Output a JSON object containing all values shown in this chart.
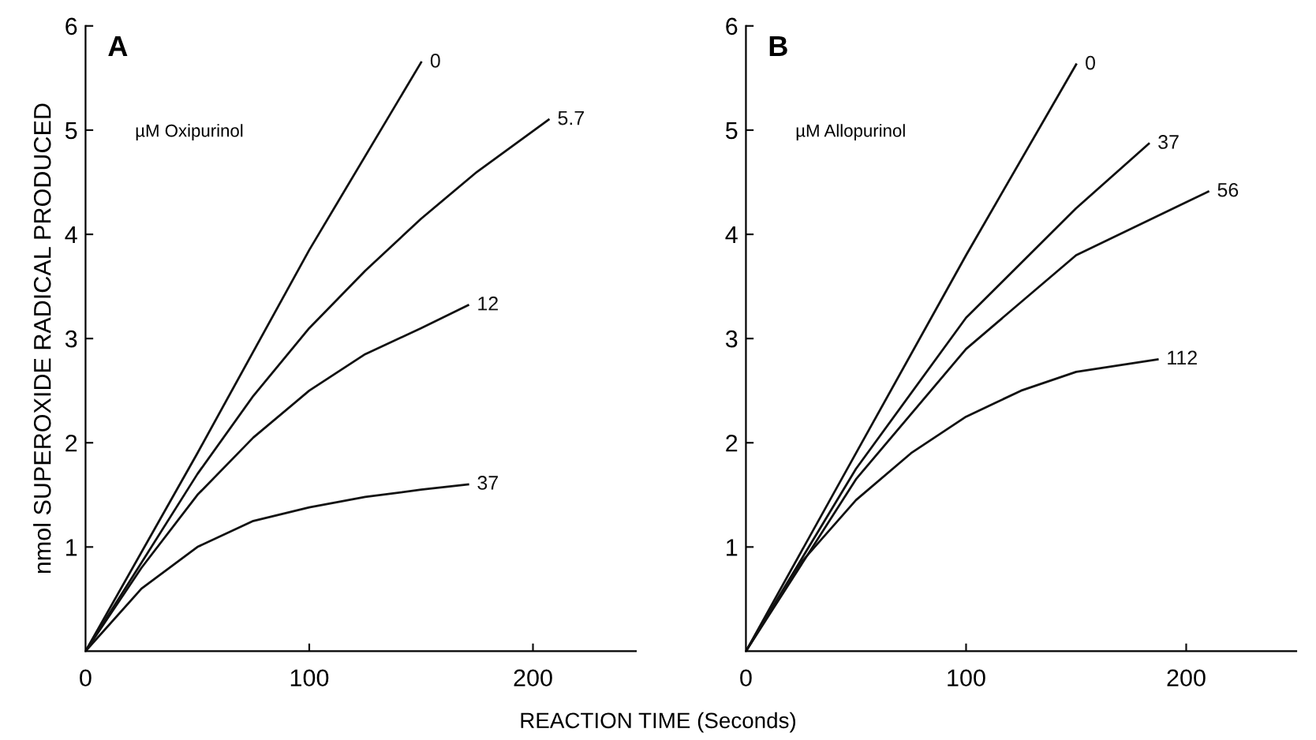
{
  "chart_data": [
    {
      "type": "line",
      "title": "A",
      "xlabel": "REACTION TIME (Seconds)",
      "ylabel": "nmol SUPEROXIDE RADICAL PRODUCED",
      "annotations": [
        "µM Oxipurinol"
      ],
      "xlim": [
        0,
        246
      ],
      "ylim": [
        0,
        6
      ],
      "xticks": [
        0,
        100,
        200
      ],
      "yticks": [
        1,
        2,
        3,
        4,
        5,
        6
      ],
      "color": "#111111",
      "grid": false,
      "legend": false,
      "marker": "none",
      "series": [
        {
          "name": "0",
          "color": "#111111",
          "x": [
            0,
            50,
            100,
            150
          ],
          "values": [
            0,
            1.9,
            3.85,
            5.65
          ]
        },
        {
          "name": "5.7",
          "color": "#111111",
          "x": [
            0,
            25,
            50,
            75,
            100,
            125,
            150,
            175,
            207
          ],
          "values": [
            0,
            0.85,
            1.7,
            2.45,
            3.1,
            3.65,
            4.15,
            4.6,
            5.1
          ]
        },
        {
          "name": "12",
          "color": "#111111",
          "x": [
            0,
            25,
            50,
            75,
            100,
            125,
            150,
            171
          ],
          "values": [
            0,
            0.8,
            1.5,
            2.05,
            2.5,
            2.85,
            3.1,
            3.32
          ]
        },
        {
          "name": "37",
          "color": "#111111",
          "x": [
            0,
            25,
            50,
            75,
            100,
            125,
            150,
            171
          ],
          "values": [
            0,
            0.6,
            1.0,
            1.25,
            1.38,
            1.48,
            1.55,
            1.6
          ]
        }
      ]
    },
    {
      "type": "line",
      "title": "B",
      "annotations": [
        "µM Allopurinol"
      ],
      "xlim": [
        0,
        250
      ],
      "ylim": [
        0,
        6
      ],
      "xticks": [
        0,
        100,
        200
      ],
      "yticks": [
        1,
        2,
        3,
        4,
        5,
        6
      ],
      "color": "#111111",
      "grid": false,
      "legend": false,
      "marker": "none",
      "series": [
        {
          "name": "0",
          "color": "#111111",
          "x": [
            0,
            50,
            100,
            150
          ],
          "values": [
            0,
            1.9,
            3.8,
            5.63
          ]
        },
        {
          "name": "37",
          "color": "#111111",
          "x": [
            0,
            50,
            100,
            150,
            183
          ],
          "values": [
            0,
            1.75,
            3.2,
            4.25,
            4.87
          ]
        },
        {
          "name": "56",
          "color": "#111111",
          "x": [
            0,
            50,
            100,
            150,
            210
          ],
          "values": [
            0,
            1.65,
            2.9,
            3.8,
            4.41
          ]
        },
        {
          "name": "112",
          "color": "#111111",
          "x": [
            0,
            25,
            50,
            75,
            100,
            125,
            150,
            187
          ],
          "values": [
            0,
            0.85,
            1.45,
            1.9,
            2.25,
            2.5,
            2.68,
            2.8
          ]
        }
      ]
    }
  ]
}
